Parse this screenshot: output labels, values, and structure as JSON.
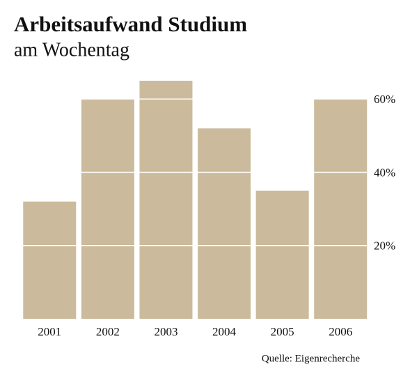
{
  "chart_data": {
    "type": "bar",
    "title": "Arbeitsaufwand Studium",
    "subtitle": "am Wochentag",
    "source": "Quelle: Eigenrecherche",
    "categories": [
      "2001",
      "2002",
      "2003",
      "2004",
      "2005",
      "2006"
    ],
    "values": [
      32,
      60,
      65,
      52,
      35,
      60
    ],
    "color": "#cbbb9c",
    "ylim": [
      0,
      65
    ],
    "yticks": [
      {
        "value": 20,
        "label": "20%"
      },
      {
        "value": 40,
        "label": "40%"
      },
      {
        "value": 60,
        "label": "60%"
      }
    ],
    "grid": true
  }
}
